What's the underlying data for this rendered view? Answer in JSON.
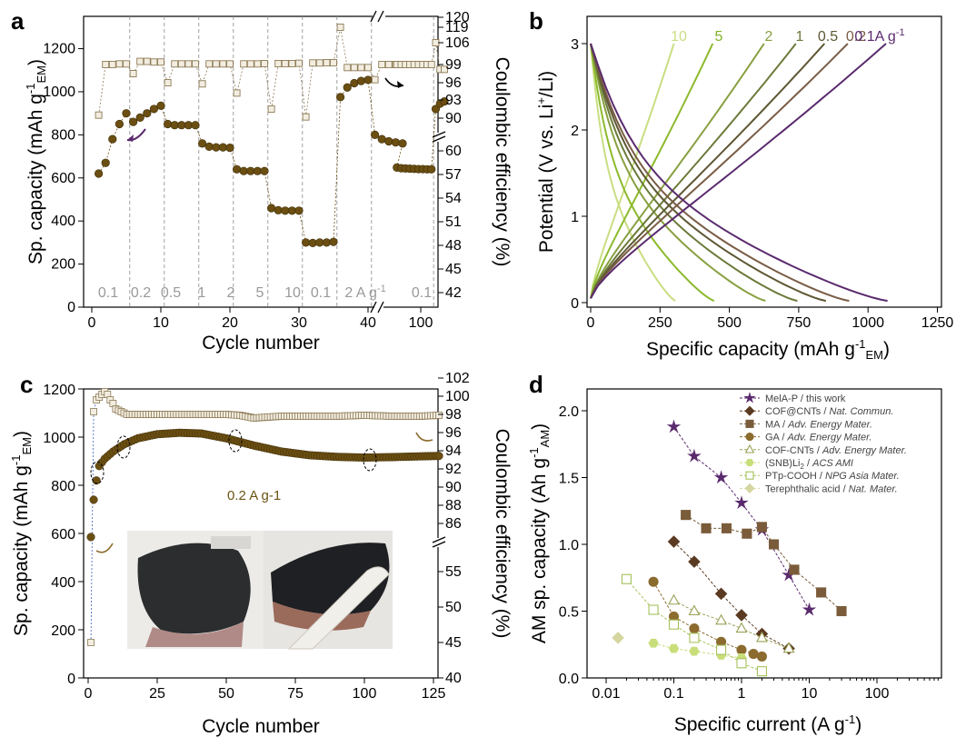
{
  "colors": {
    "capacity": "#6b4f12",
    "ce_fill": "#f2ede0",
    "ce_stroke": "#8c7a55",
    "mela": "#5a2a6e",
    "brown_dark": "#5b3a22",
    "brown_mid": "#7a5c3a",
    "olive": "#8b6b2e",
    "yellow_green": "#a5c25a",
    "light_green": "#c8de7a"
  },
  "chart_data": [
    {
      "panel": "a",
      "type": "scatter",
      "xlabel": "Cycle number",
      "ylabel": "Sp. capacity (mAh g⁻¹EM)",
      "ylabel_main": "Sp. capacity (mAh g",
      "ylabel_sup": "-1",
      "ylabel_sub": "EM",
      "ylabel_close": ")",
      "y2label": "Coulombic efficiency (%)",
      "x_ticks": [
        "0",
        "10",
        "20",
        "30",
        "40",
        "100"
      ],
      "y_ticks": [
        "0",
        "200",
        "400",
        "600",
        "800",
        "1000",
        "1200"
      ],
      "y2_ticks": [
        "42",
        "45",
        "48",
        "51",
        "54",
        "57",
        "60",
        "90",
        "93",
        "96",
        "99",
        "106",
        "119",
        "120"
      ],
      "ylim": [
        0,
        1350
      ],
      "segment_labels": [
        "0.1",
        "0.2",
        "0.5",
        "1",
        "2",
        "5",
        "10",
        "0.1",
        "2 A g-1",
        "0.1"
      ],
      "series": [
        {
          "name": "Sp. capacity",
          "points": [
            [
              1,
              620
            ],
            [
              2,
              670
            ],
            [
              3,
              780
            ],
            [
              4,
              850
            ],
            [
              5,
              900
            ],
            [
              6,
              860
            ],
            [
              7,
              880
            ],
            [
              8,
              900
            ],
            [
              9,
              920
            ],
            [
              10,
              935
            ],
            [
              11,
              850
            ],
            [
              12,
              845
            ],
            [
              13,
              845
            ],
            [
              14,
              845
            ],
            [
              15,
              845
            ],
            [
              16,
              760
            ],
            [
              17,
              745
            ],
            [
              18,
              742
            ],
            [
              19,
              742
            ],
            [
              20,
              740
            ],
            [
              21,
              640
            ],
            [
              22,
              632
            ],
            [
              23,
              632
            ],
            [
              24,
              632
            ],
            [
              25,
              632
            ],
            [
              26,
              460
            ],
            [
              27,
              450
            ],
            [
              28,
              448
            ],
            [
              29,
              448
            ],
            [
              30,
              448
            ],
            [
              31,
              300
            ],
            [
              32,
              298
            ],
            [
              33,
              300
            ],
            [
              34,
              300
            ],
            [
              35,
              303
            ],
            [
              36,
              975
            ],
            [
              37,
              1020
            ],
            [
              38,
              1040
            ],
            [
              39,
              1050
            ],
            [
              40,
              1055
            ],
            [
              41,
              800
            ],
            [
              42,
              780
            ],
            [
              43,
              770
            ],
            [
              44,
              765
            ],
            [
              45,
              760
            ],
            [
              47,
              648
            ],
            [
              48,
              645
            ],
            [
              49,
              644
            ],
            [
              50,
              643
            ],
            [
              51,
              642
            ],
            [
              52,
              641
            ],
            [
              53,
              641
            ],
            [
              54,
              640
            ],
            [
              55,
              640
            ],
            [
              56,
              920
            ],
            [
              57,
              945
            ],
            [
              58,
              955
            ]
          ]
        },
        {
          "name": "Coulombic efficiency",
          "points": [
            [
              1,
              90.5
            ],
            [
              2,
              99
            ],
            [
              3,
              99
            ],
            [
              4,
              99.2
            ],
            [
              5,
              99.2
            ],
            [
              6,
              97.5
            ],
            [
              7,
              100
            ],
            [
              8,
              100
            ],
            [
              9,
              99.8
            ],
            [
              10,
              99.8
            ],
            [
              11,
              96
            ],
            [
              12,
              99.2
            ],
            [
              13,
              99.2
            ],
            [
              14,
              99.2
            ],
            [
              15,
              99.2
            ],
            [
              16,
              95.8
            ],
            [
              17,
              99.2
            ],
            [
              18,
              99.2
            ],
            [
              19,
              99.2
            ],
            [
              20,
              99.2
            ],
            [
              21,
              94.2
            ],
            [
              22,
              99.2
            ],
            [
              23,
              99.2
            ],
            [
              24,
              99.2
            ],
            [
              25,
              99.3
            ],
            [
              26,
              91.5
            ],
            [
              27,
              99.3
            ],
            [
              28,
              99.3
            ],
            [
              29,
              99.3
            ],
            [
              30,
              99.4
            ],
            [
              31,
              90.2
            ],
            [
              32,
              99.5
            ],
            [
              33,
              99.5
            ],
            [
              34,
              99.6
            ],
            [
              35,
              99.6
            ],
            [
              36,
              119
            ],
            [
              37,
              98.5
            ],
            [
              38,
              98.5
            ],
            [
              39,
              98.5
            ],
            [
              40,
              98.5
            ],
            [
              41,
              96.5
            ],
            [
              42,
              99
            ],
            [
              43,
              99
            ],
            [
              44,
              99
            ],
            [
              45,
              99
            ],
            [
              47,
              99
            ],
            [
              48,
              99
            ],
            [
              49,
              99
            ],
            [
              50,
              99
            ],
            [
              51,
              99
            ],
            [
              52,
              99
            ],
            [
              53,
              99
            ],
            [
              54,
              99
            ],
            [
              55,
              99
            ],
            [
              56,
              106
            ],
            [
              57,
              98.2
            ],
            [
              58,
              98.2
            ]
          ]
        }
      ]
    },
    {
      "panel": "b",
      "type": "line",
      "xlabel": "Specific capacity (mAh g⁻¹EM)",
      "xlabel_main": "Specific capacity (mAh g",
      "xlabel_sup": "-1",
      "xlabel_sub": "EM",
      "xlabel_close": ")",
      "ylabel": "Potential (V vs. Li⁺/Li)",
      "ylabel_main": "Potential (V vs. Li",
      "ylabel_sup": "+",
      "ylabel_close": "/Li)",
      "x_ticks": [
        "0",
        "250",
        "500",
        "750",
        "1000",
        "1250"
      ],
      "y_ticks": [
        "0",
        "1",
        "2",
        "3"
      ],
      "xlim": [
        0,
        1250
      ],
      "ylim": [
        0,
        3.2
      ],
      "current_labels": [
        "10",
        "5",
        "2",
        "1",
        "0.5",
        "0.2",
        "0.1A g-1"
      ],
      "series": [
        {
          "name": "10",
          "dis": 305,
          "ch": 300
        },
        {
          "name": "5",
          "dis": 445,
          "ch": 440
        },
        {
          "name": "2",
          "dis": 630,
          "ch": 625
        },
        {
          "name": "1",
          "dis": 745,
          "ch": 740
        },
        {
          "name": "0.5",
          "dis": 848,
          "ch": 843
        },
        {
          "name": "0.2",
          "dis": 932,
          "ch": 927
        },
        {
          "name": "0.1",
          "dis": 1070,
          "ch": 1065
        }
      ]
    },
    {
      "panel": "c",
      "type": "scatter",
      "xlabel": "Cycle number",
      "ylabel": "Sp. capacity (mAh g⁻¹EM)",
      "y2label": "Coulombic efficiency (%)",
      "x_ticks": [
        "0",
        "25",
        "50",
        "75",
        "100",
        "125"
      ],
      "y_ticks": [
        "0",
        "200",
        "400",
        "600",
        "800",
        "1000",
        "1200"
      ],
      "y2_ticks": [
        "40",
        "45",
        "50",
        "55",
        "86",
        "88",
        "90",
        "92",
        "94",
        "96",
        "98",
        "100",
        "102"
      ],
      "xlim": [
        0,
        128
      ],
      "ylim": [
        0,
        1200
      ],
      "annotation": "0.2 A g-1",
      "capacity_control": [
        [
          1,
          585
        ],
        [
          2,
          740
        ],
        [
          3,
          820
        ],
        [
          4,
          880
        ],
        [
          6,
          910
        ],
        [
          9,
          940
        ],
        [
          13,
          970
        ],
        [
          18,
          995
        ],
        [
          25,
          1012
        ],
        [
          33,
          1018
        ],
        [
          41,
          1015
        ],
        [
          50,
          995
        ],
        [
          60,
          965
        ],
        [
          70,
          940
        ],
        [
          80,
          925
        ],
        [
          90,
          918
        ],
        [
          100,
          915
        ],
        [
          110,
          917
        ],
        [
          120,
          920
        ],
        [
          127,
          922
        ]
      ],
      "ce_points": [
        [
          1,
          45
        ],
        [
          2,
          98.3
        ],
        [
          3,
          99.6
        ],
        [
          4,
          99.9
        ],
        [
          5,
          100.2
        ],
        [
          6,
          100.5
        ],
        [
          7,
          100.2
        ],
        [
          8,
          99.6
        ],
        [
          9,
          99.2
        ],
        [
          10,
          98.6
        ],
        [
          12,
          98.3
        ],
        [
          14,
          98.0
        ],
        [
          20,
          98.0
        ],
        [
          30,
          98.0
        ],
        [
          40,
          98.0
        ],
        [
          50,
          98.0
        ],
        [
          55,
          97.9
        ],
        [
          60,
          97.6
        ],
        [
          65,
          97.7
        ],
        [
          70,
          97.8
        ],
        [
          80,
          97.8
        ],
        [
          90,
          97.8
        ],
        [
          100,
          97.9
        ],
        [
          110,
          97.8
        ],
        [
          120,
          97.8
        ],
        [
          127,
          97.9
        ]
      ]
    },
    {
      "panel": "d",
      "type": "scatter",
      "xlabel": "Specific current (A g⁻¹)",
      "xlabel_main": "Specific current (A g",
      "xlabel_sup": "-1",
      "xlabel_close": ")",
      "ylabel": "AM sp. capacity (Ah g⁻¹AM)",
      "ylabel_main": "AM sp. capacity (Ah g",
      "ylabel_sup": "-1",
      "ylabel_sub": "AM",
      "ylabel_close": ")",
      "x_scale": "log",
      "x_ticks": [
        "0.01",
        "0.1",
        "1",
        "10",
        "100"
      ],
      "y_ticks": [
        "0.0",
        "0.5",
        "1.0",
        "1.5",
        "2.0"
      ],
      "xlim": [
        0.005,
        700
      ],
      "ylim": [
        0,
        2.3
      ],
      "legend_position": "top-right",
      "series": [
        {
          "name": "MelA-P / this work",
          "marker": "star",
          "filled": true,
          "color": "#5a2a6e",
          "points": [
            [
              0.1,
              1.88
            ],
            [
              0.2,
              1.66
            ],
            [
              0.5,
              1.5
            ],
            [
              1,
              1.31
            ],
            [
              2,
              1.11
            ],
            [
              5,
              0.77
            ],
            [
              10,
              0.51
            ]
          ]
        },
        {
          "name": "COF@CNTs / Nat. Commun.",
          "author": "COF@CNTs / ",
          "journal": "Nat. Commun.",
          "marker": "diamond",
          "filled": true,
          "color": "#5b3a22",
          "points": [
            [
              0.1,
              1.02
            ],
            [
              0.2,
              0.87
            ],
            [
              0.5,
              0.63
            ],
            [
              1,
              0.47
            ],
            [
              2,
              0.33
            ],
            [
              5,
              0.22
            ]
          ]
        },
        {
          "name": "MA / Adv. Energy Mater.",
          "author": "MA / ",
          "journal": "Adv. Energy Mater.",
          "marker": "square",
          "filled": true,
          "color": "#7a5c3a",
          "points": [
            [
              0.15,
              1.22
            ],
            [
              0.3,
              1.12
            ],
            [
              0.6,
              1.12
            ],
            [
              1.2,
              1.08
            ],
            [
              2,
              1.13
            ],
            [
              3,
              1.0
            ],
            [
              6,
              0.81
            ],
            [
              15,
              0.64
            ],
            [
              30,
              0.5
            ]
          ]
        },
        {
          "name": "GA / Adv. Energy Mater.",
          "author": "GA / ",
          "journal": "Adv. Energy Mater.",
          "marker": "circle",
          "filled": true,
          "color": "#8b6b2e",
          "points": [
            [
              0.05,
              0.72
            ],
            [
              0.1,
              0.46
            ],
            [
              0.2,
              0.37
            ],
            [
              0.5,
              0.27
            ],
            [
              1,
              0.21
            ],
            [
              1.5,
              0.18
            ],
            [
              2,
              0.16
            ]
          ]
        },
        {
          "name": "COF-CNTs / Adv. Energy Mater.",
          "author": "COF-CNTs / ",
          "journal": "Adv. Energy Mater.",
          "marker": "triangle",
          "filled": false,
          "color": "#9aa055",
          "points": [
            [
              0.1,
              0.58
            ],
            [
              0.2,
              0.5
            ],
            [
              0.5,
              0.43
            ],
            [
              1,
              0.37
            ],
            [
              2,
              0.3
            ],
            [
              5,
              0.22
            ]
          ]
        },
        {
          "name": "(SNB)Li2 / ACS AMI",
          "author": "(SNB)Li",
          "author_sub": "2",
          "author_tail": " / ",
          "journal": "ACS AMI",
          "marker": "hexagon",
          "filled": true,
          "color": "#c8de7a",
          "points": [
            [
              0.05,
              0.26
            ],
            [
              0.1,
              0.22
            ],
            [
              0.2,
              0.2
            ],
            [
              0.5,
              0.17
            ],
            [
              1,
              0.15
            ]
          ]
        },
        {
          "name": "PTp-COOH / NPG Asia Mater.",
          "author": "PTp-COOH / ",
          "journal": "NPG Asia Mater.",
          "marker": "square",
          "filled": false,
          "color": "#a5c25a",
          "points": [
            [
              0.02,
              0.74
            ],
            [
              0.05,
              0.51
            ],
            [
              0.1,
              0.4
            ],
            [
              0.2,
              0.3
            ],
            [
              0.5,
              0.21
            ],
            [
              1,
              0.11
            ],
            [
              2,
              0.05
            ]
          ]
        },
        {
          "name": "Terephthalic acid / Nat. Mater.",
          "author": "Terephthalic acid / ",
          "journal": "Nat. Mater.",
          "marker": "diamond",
          "filled": true,
          "color": "#d5d6a0",
          "points": [
            [
              0.015,
              0.3
            ]
          ]
        }
      ]
    }
  ]
}
